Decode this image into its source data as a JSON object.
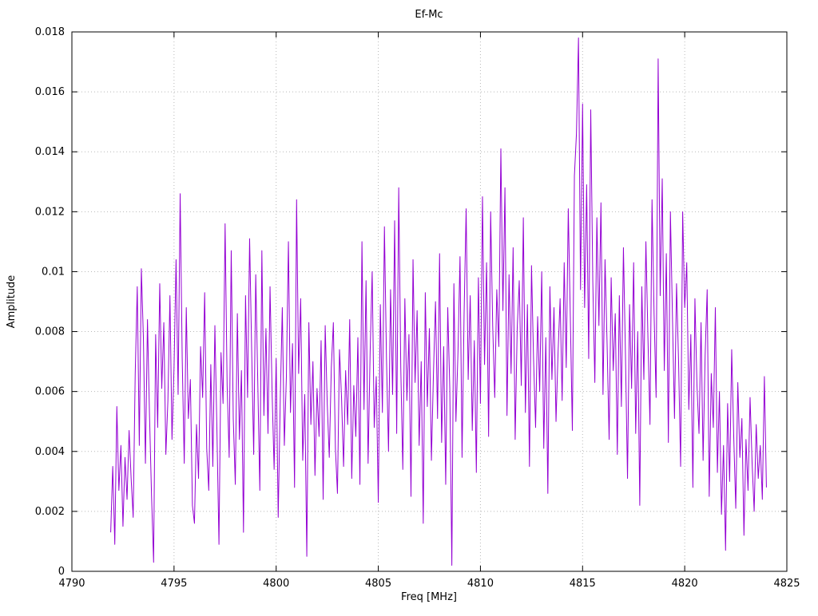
{
  "chart_data": {
    "type": "line",
    "title": "Ef-Mc",
    "xlabel": "Freq [MHz]",
    "ylabel": "Amplitude",
    "xlim": [
      4790,
      4825
    ],
    "ylim": [
      0,
      0.018
    ],
    "x_ticks": [
      4790,
      4795,
      4800,
      4805,
      4810,
      4815,
      4820,
      4825
    ],
    "x_tick_labels": [
      "4790",
      "4795",
      "4800",
      "4805",
      "4810",
      "4815",
      "4820",
      "4825"
    ],
    "y_ticks": [
      0,
      0.002,
      0.004,
      0.006,
      0.008,
      0.01,
      0.012,
      0.014,
      0.016,
      0.018
    ],
    "y_tick_labels": [
      "0",
      "0.002",
      "0.004",
      "0.006",
      "0.008",
      "0.01",
      "0.012",
      "0.014",
      "0.016",
      "0.018"
    ],
    "grid": true,
    "legend": "none",
    "line_color": "#9400D3",
    "grid_color": "#b8b8b8",
    "series": [
      {
        "name": "Ef-Mc",
        "x_start": 4791.9,
        "x_step": 0.1,
        "values": [
          0.0013,
          0.0035,
          0.0009,
          0.0055,
          0.0027,
          0.0042,
          0.0015,
          0.0038,
          0.0024,
          0.0047,
          0.0031,
          0.0018,
          0.0066,
          0.0095,
          0.0042,
          0.0101,
          0.0078,
          0.0036,
          0.0084,
          0.0052,
          0.0025,
          0.0003,
          0.0079,
          0.0048,
          0.0096,
          0.0061,
          0.0083,
          0.0039,
          0.0057,
          0.0092,
          0.0044,
          0.0068,
          0.0104,
          0.0059,
          0.0126,
          0.0071,
          0.0036,
          0.0088,
          0.0051,
          0.0064,
          0.0022,
          0.0016,
          0.0049,
          0.0031,
          0.0075,
          0.0058,
          0.0093,
          0.0041,
          0.0027,
          0.0069,
          0.0035,
          0.0082,
          0.0047,
          0.0009,
          0.0073,
          0.0056,
          0.0116,
          0.0062,
          0.0038,
          0.0107,
          0.0051,
          0.0029,
          0.0086,
          0.0044,
          0.0067,
          0.0013,
          0.0092,
          0.0058,
          0.0111,
          0.0074,
          0.0039,
          0.0099,
          0.0063,
          0.0027,
          0.0107,
          0.0052,
          0.0081,
          0.0046,
          0.0095,
          0.006,
          0.0034,
          0.0071,
          0.0018,
          0.0057,
          0.0088,
          0.0042,
          0.0065,
          0.011,
          0.0053,
          0.0076,
          0.0028,
          0.0124,
          0.0066,
          0.0091,
          0.0037,
          0.0059,
          0.0005,
          0.0083,
          0.0049,
          0.007,
          0.0032,
          0.0061,
          0.0045,
          0.0077,
          0.0024,
          0.0082,
          0.0056,
          0.0038,
          0.0068,
          0.0083,
          0.0041,
          0.0026,
          0.0074,
          0.0058,
          0.0035,
          0.0067,
          0.0049,
          0.0084,
          0.0031,
          0.0062,
          0.0045,
          0.0078,
          0.0029,
          0.011,
          0.0054,
          0.0097,
          0.0036,
          0.0073,
          0.01,
          0.0048,
          0.0065,
          0.0023,
          0.0089,
          0.0053,
          0.0115,
          0.0071,
          0.004,
          0.0094,
          0.0059,
          0.0117,
          0.0046,
          0.0128,
          0.0068,
          0.0034,
          0.0091,
          0.0057,
          0.0079,
          0.0025,
          0.0104,
          0.0063,
          0.0087,
          0.0042,
          0.007,
          0.0016,
          0.0093,
          0.0055,
          0.0081,
          0.0037,
          0.0066,
          0.009,
          0.0051,
          0.0106,
          0.0043,
          0.0075,
          0.0029,
          0.0088,
          0.0061,
          0.0002,
          0.0096,
          0.005,
          0.0073,
          0.0105,
          0.0038,
          0.0086,
          0.0121,
          0.0064,
          0.0092,
          0.0047,
          0.0077,
          0.0033,
          0.0098,
          0.0056,
          0.0125,
          0.0069,
          0.0103,
          0.0045,
          0.012,
          0.0082,
          0.0058,
          0.0094,
          0.0075,
          0.0141,
          0.0087,
          0.0128,
          0.0052,
          0.0099,
          0.0066,
          0.0108,
          0.0044,
          0.0081,
          0.0097,
          0.0062,
          0.0118,
          0.0053,
          0.0089,
          0.0035,
          0.0102,
          0.0071,
          0.0048,
          0.0085,
          0.006,
          0.01,
          0.0041,
          0.0078,
          0.0026,
          0.0095,
          0.0064,
          0.0088,
          0.005,
          0.0073,
          0.0091,
          0.0057,
          0.0103,
          0.0068,
          0.0121,
          0.0085,
          0.0047,
          0.0132,
          0.0146,
          0.0178,
          0.0094,
          0.0156,
          0.0088,
          0.0129,
          0.0071,
          0.0154,
          0.0097,
          0.0063,
          0.0118,
          0.0082,
          0.0123,
          0.0059,
          0.0104,
          0.0076,
          0.0044,
          0.0098,
          0.0067,
          0.0086,
          0.0039,
          0.0092,
          0.0055,
          0.0108,
          0.0072,
          0.0031,
          0.0089,
          0.0061,
          0.0103,
          0.0046,
          0.008,
          0.0022,
          0.0095,
          0.0064,
          0.011,
          0.0078,
          0.0049,
          0.0124,
          0.0086,
          0.0058,
          0.0171,
          0.0092,
          0.0131,
          0.0067,
          0.0106,
          0.0043,
          0.012,
          0.0085,
          0.0051,
          0.0096,
          0.007,
          0.0035,
          0.012,
          0.0088,
          0.0103,
          0.0054,
          0.0079,
          0.0028,
          0.0091,
          0.0062,
          0.0046,
          0.0083,
          0.0037,
          0.0072,
          0.0094,
          0.0025,
          0.0066,
          0.0048,
          0.0088,
          0.0033,
          0.006,
          0.0019,
          0.0042,
          0.0007,
          0.0056,
          0.003,
          0.0074,
          0.0045,
          0.0021,
          0.0063,
          0.0038,
          0.0051,
          0.0012,
          0.0044,
          0.0027,
          0.0058,
          0.0036,
          0.002,
          0.0049,
          0.0031,
          0.0042,
          0.0024,
          0.0065,
          0.0028
        ]
      }
    ]
  }
}
